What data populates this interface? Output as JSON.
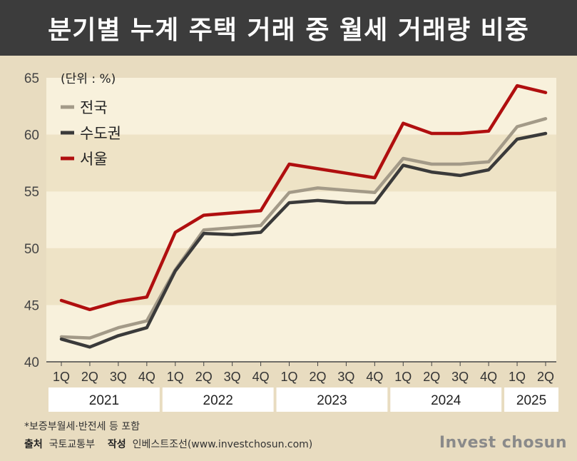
{
  "title": "분기별 누계 주택 거래 중 월세 거래량 비중",
  "chart_data": {
    "type": "line",
    "unit_label": "(단위 : %)",
    "categories": [
      "1Q",
      "2Q",
      "3Q",
      "4Q",
      "1Q",
      "2Q",
      "3Q",
      "4Q",
      "1Q",
      "2Q",
      "3Q",
      "4Q",
      "1Q",
      "2Q",
      "3Q",
      "4Q",
      "1Q",
      "2Q"
    ],
    "year_groups": [
      {
        "label": "2021",
        "start": 0,
        "end": 3
      },
      {
        "label": "2022",
        "start": 4,
        "end": 7
      },
      {
        "label": "2023",
        "start": 8,
        "end": 11
      },
      {
        "label": "2024",
        "start": 12,
        "end": 15
      },
      {
        "label": "2025",
        "start": 16,
        "end": 17
      }
    ],
    "ylim": [
      40,
      65
    ],
    "yticks": [
      40,
      45,
      50,
      55,
      60,
      65
    ],
    "legend_position": "top-left",
    "series": [
      {
        "name": "전국",
        "color": "#a39a88",
        "values": [
          42.2,
          42.1,
          43.0,
          43.6,
          48.1,
          51.6,
          51.8,
          52.0,
          54.9,
          55.3,
          55.1,
          54.9,
          57.9,
          57.4,
          57.4,
          57.6,
          60.7,
          61.4
        ]
      },
      {
        "name": "수도권",
        "color": "#3a3a3a",
        "values": [
          42.0,
          41.3,
          42.3,
          43.0,
          48.0,
          51.3,
          51.2,
          51.4,
          54.0,
          54.2,
          54.0,
          54.0,
          57.3,
          56.7,
          56.4,
          56.9,
          59.6,
          60.1
        ]
      },
      {
        "name": "서울",
        "color": "#b00f0f",
        "values": [
          45.4,
          44.6,
          45.3,
          45.7,
          51.4,
          52.9,
          53.1,
          53.3,
          57.4,
          57.0,
          56.6,
          56.2,
          61.0,
          60.1,
          60.1,
          60.3,
          64.3,
          63.7
        ]
      }
    ]
  },
  "footer": {
    "note": "*보증부월세·반전세 등 포함",
    "source_label": "출처",
    "source": "국토교통부",
    "author_label": "작성",
    "author": "인베스트조선(www.investchosun.com)"
  },
  "brand": "Invest chosun"
}
